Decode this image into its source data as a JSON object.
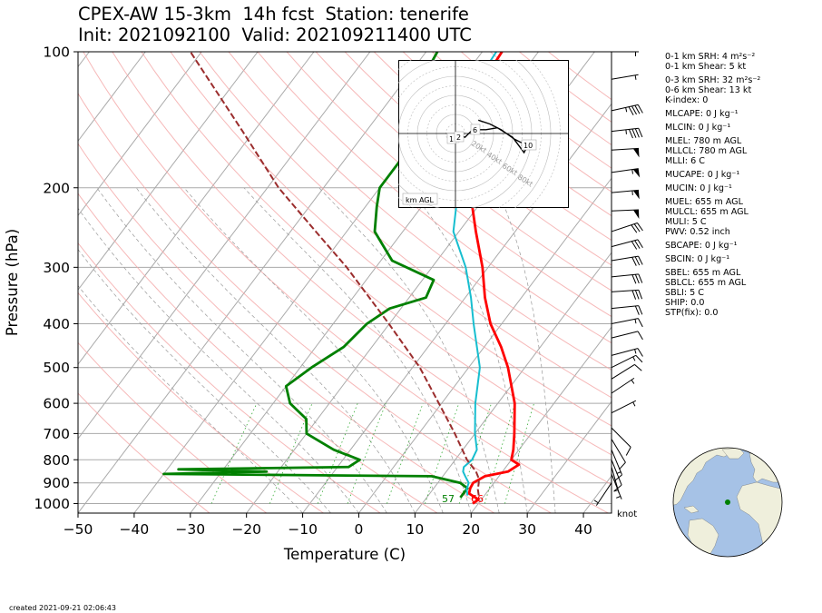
{
  "title": {
    "line1": "CPEX-AW 15-3km  14h fcst  Station: tenerife",
    "line2": "Init: 2021092100  Valid: 202109211400 UTC"
  },
  "footer": {
    "created": "created 2021-09-21 02:06:43"
  },
  "stats": [
    {
      "label": "0-1 km SRH: 4 m²s⁻²"
    },
    {
      "label": "0-1 km Shear: 5 kt"
    },
    {
      "label": "0-3 km SRH: 32 m²s⁻²",
      "gap": true
    },
    {
      "label": "0-6 km Shear: 13 kt"
    },
    {
      "label": "K-index: 0"
    },
    {
      "label": "MLCAPE: 0 J kg⁻¹",
      "gap": true
    },
    {
      "label": "MLCIN: 0 J kg⁻¹",
      "gap": true
    },
    {
      "label": "MLEL: 780 m AGL",
      "gap": true
    },
    {
      "label": "MLLCL: 780 m AGL"
    },
    {
      "label": "MLLI: 6 C"
    },
    {
      "label": "MUCAPE: 0 J kg⁻¹",
      "gap": true
    },
    {
      "label": "MUCIN: 0 J kg⁻¹",
      "gap": true
    },
    {
      "label": "MUEL: 655 m AGL",
      "gap": true
    },
    {
      "label": "MULCL: 655 m AGL"
    },
    {
      "label": "MULI: 5 C"
    },
    {
      "label": "PWV: 0.52 inch"
    },
    {
      "label": "SBCAPE: 0 J kg⁻¹",
      "gap": true
    },
    {
      "label": "SBCIN: 0 J kg⁻¹",
      "gap": true
    },
    {
      "label": "SBEL: 655 m AGL",
      "gap": true
    },
    {
      "label": "SBLCL: 655 m AGL"
    },
    {
      "label": "SBLI: 5 C"
    },
    {
      "label": "SHIP: 0.0"
    },
    {
      "label": "STP(fix): 0.0"
    }
  ],
  "chart_data": [
    {
      "type": "line",
      "subtype": "skew-t log-p sounding",
      "xlabel": "Temperature (C)",
      "ylabel": "Pressure (hPa)",
      "xlim": [
        -50,
        45
      ],
      "ylim": [
        1050,
        100
      ],
      "yscale": "log",
      "xticks": [
        -50,
        -40,
        -30,
        -20,
        -10,
        0,
        10,
        20,
        30,
        40
      ],
      "yticks": [
        100,
        200,
        300,
        400,
        500,
        600,
        700,
        800,
        900,
        1000
      ],
      "wind_unit_label": "knot",
      "surface_labels": {
        "temperature_f": "66",
        "dewpoint_f": "57"
      },
      "colors": {
        "temperature": "#ff0000",
        "dewpoint": "#008000",
        "wetbulb": "#17becf",
        "parcel": "#9b2d2d"
      },
      "series": [
        {
          "role": "temperature",
          "points": [
            [
              1000,
              19
            ],
            [
              980,
              19.5
            ],
            [
              950,
              17
            ],
            [
              925,
              16.5
            ],
            [
              900,
              16.3
            ],
            [
              870,
              17.5
            ],
            [
              850,
              21
            ],
            [
              820,
              22
            ],
            [
              800,
              20
            ],
            [
              760,
              19
            ],
            [
              700,
              17
            ],
            [
              600,
              13
            ],
            [
              500,
              7
            ],
            [
              450,
              3
            ],
            [
              400,
              -2
            ],
            [
              350,
              -6.5
            ],
            [
              300,
              -11
            ],
            [
              250,
              -17
            ],
            [
              200,
              -24
            ],
            [
              170,
              -29
            ],
            [
              150,
              -32
            ],
            [
              130,
              -35
            ],
            [
              115,
              -36
            ],
            [
              100,
              -36.5
            ]
          ]
        },
        {
          "role": "dewpoint",
          "points": [
            [
              970,
              16
            ],
            [
              950,
              16
            ],
            [
              925,
              16
            ],
            [
              900,
              14
            ],
            [
              870,
              8
            ],
            [
              860,
              -40
            ],
            [
              850,
              -22
            ],
            [
              840,
              -38
            ],
            [
              830,
              -8
            ],
            [
              800,
              -7
            ],
            [
              760,
              -13
            ],
            [
              700,
              -20
            ],
            [
              650,
              -22
            ],
            [
              600,
              -27
            ],
            [
              550,
              -30
            ],
            [
              500,
              -28
            ],
            [
              450,
              -25
            ],
            [
              400,
              -24
            ],
            [
              370,
              -22
            ],
            [
              350,
              -17
            ],
            [
              320,
              -18
            ],
            [
              290,
              -28
            ],
            [
              250,
              -35
            ],
            [
              220,
              -38
            ],
            [
              200,
              -40
            ],
            [
              170,
              -40
            ],
            [
              150,
              -42
            ],
            [
              130,
              -46
            ],
            [
              115,
              -47
            ],
            [
              100,
              -48
            ]
          ]
        },
        {
          "role": "wetbulb",
          "points": [
            [
              960,
              17
            ],
            [
              930,
              16
            ],
            [
              900,
              15.5
            ],
            [
              870,
              14
            ],
            [
              850,
              13
            ],
            [
              830,
              12.5
            ],
            [
              800,
              13
            ],
            [
              760,
              12.5
            ],
            [
              700,
              10
            ],
            [
              600,
              6
            ],
            [
              500,
              2
            ],
            [
              400,
              -5
            ],
            [
              350,
              -9
            ],
            [
              300,
              -14
            ],
            [
              250,
              -21
            ],
            [
              200,
              -26
            ],
            [
              170,
              -30
            ],
            [
              150,
              -33
            ],
            [
              130,
              -36
            ],
            [
              115,
              -37
            ],
            [
              100,
              -37.5
            ]
          ]
        },
        {
          "role": "parcel",
          "points": [
            [
              960,
              19
            ],
            [
              930,
              18
            ],
            [
              900,
              17.3
            ],
            [
              880,
              16.7
            ],
            [
              850,
              15.3
            ],
            [
              800,
              12.1
            ],
            [
              700,
              6.4
            ],
            [
              600,
              -0.5
            ],
            [
              500,
              -8.7
            ],
            [
              400,
              -20.1
            ],
            [
              300,
              -35.2
            ],
            [
              250,
              -45.5
            ],
            [
              200,
              -58
            ],
            [
              150,
              -72
            ],
            [
              100,
              -92
            ]
          ]
        }
      ],
      "wind_barbs": [
        {
          "p": 100,
          "u": -6,
          "v": 0
        },
        {
          "p": 115,
          "u": -6,
          "v": -1
        },
        {
          "p": 135,
          "u": -45,
          "v": -10
        },
        {
          "p": 150,
          "u": -45,
          "v": -5
        },
        {
          "p": 165,
          "u": -50,
          "v": -3
        },
        {
          "p": 185,
          "u": -55,
          "v": -8
        },
        {
          "p": 205,
          "u": -55,
          "v": -5
        },
        {
          "p": 225,
          "u": -50,
          "v": -2
        },
        {
          "p": 250,
          "u": -30,
          "v": -10
        },
        {
          "p": 270,
          "u": -30,
          "v": -8
        },
        {
          "p": 290,
          "u": -30,
          "v": -5
        },
        {
          "p": 315,
          "u": -30,
          "v": -3
        },
        {
          "p": 340,
          "u": -30,
          "v": -2
        },
        {
          "p": 370,
          "u": -20,
          "v": -2
        },
        {
          "p": 400,
          "u": -15,
          "v": -3
        },
        {
          "p": 430,
          "u": -12,
          "v": -3
        },
        {
          "p": 470,
          "u": -15,
          "v": -4
        },
        {
          "p": 500,
          "u": -12,
          "v": -6
        },
        {
          "p": 530,
          "u": -8,
          "v": -5
        },
        {
          "p": 570,
          "u": -6,
          "v": -4
        },
        {
          "p": 630,
          "u": -6,
          "v": -3
        },
        {
          "p": 680,
          "u": -8,
          "v": 8
        },
        {
          "p": 720,
          "u": -6,
          "v": 10
        },
        {
          "p": 760,
          "u": -5,
          "v": 12
        },
        {
          "p": 800,
          "u": -4,
          "v": 10
        },
        {
          "p": 830,
          "u": -2,
          "v": 7
        },
        {
          "p": 860,
          "u": -2,
          "v": 5
        },
        {
          "p": 900,
          "u": 2,
          "v": 3
        }
      ]
    },
    {
      "type": "line",
      "subtype": "hodograph",
      "label": "km AGL",
      "ring_labels": [
        "20kt",
        "40kt",
        "60kt",
        "80kt"
      ],
      "height_labels": [
        "1",
        "2",
        "6",
        "10"
      ],
      "points": [
        [
          0,
          0
        ],
        [
          2,
          0
        ],
        [
          3,
          -1
        ],
        [
          5,
          -2
        ],
        [
          9,
          2
        ],
        [
          16,
          2
        ],
        [
          22,
          3
        ],
        [
          30,
          -2
        ],
        [
          33,
          -6
        ],
        [
          36,
          -10
        ],
        [
          37,
          -8
        ],
        [
          35,
          -5
        ],
        [
          31,
          -3
        ],
        [
          24,
          2
        ],
        [
          18,
          5
        ],
        [
          12,
          7
        ]
      ]
    }
  ],
  "globe": {
    "station": "tenerife",
    "marker_color": "#008000"
  }
}
